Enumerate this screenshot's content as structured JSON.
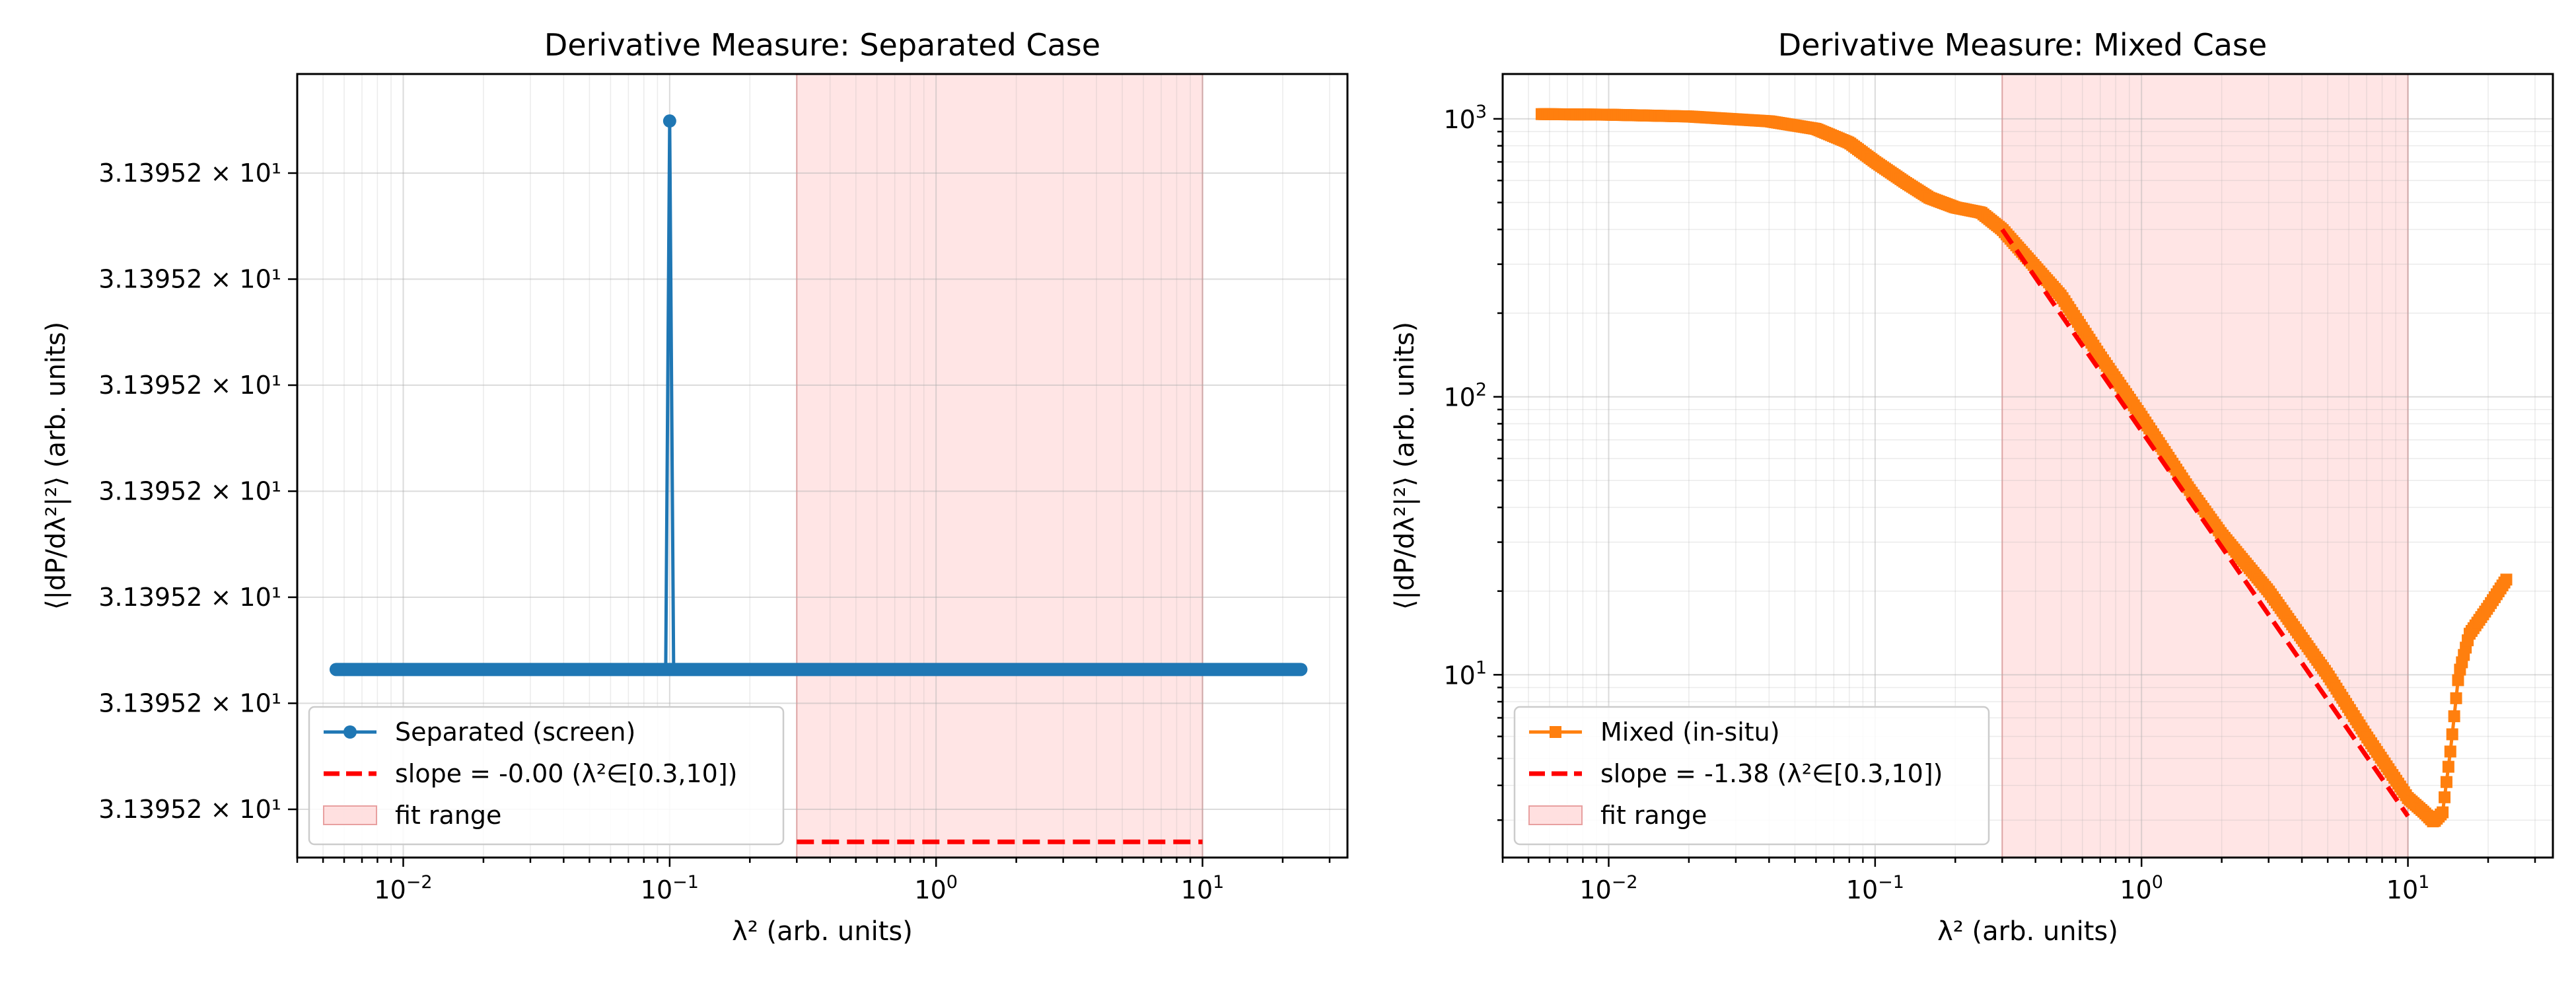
{
  "chart_data": [
    {
      "type": "line",
      "title": "Derivative Measure: Separated Case",
      "xlabel": "λ² (arb. units)",
      "ylabel": "⟨|dP/dλ²|²⟩ (arb. units)",
      "xscale": "log",
      "yscale": "linear",
      "xlim": [
        0.004,
        35
      ],
      "x_ticks": [
        {
          "value": 0.01,
          "base": "10",
          "exp": "−2"
        },
        {
          "value": 0.1,
          "base": "10",
          "exp": "−1"
        },
        {
          "value": 1,
          "base": "10",
          "exp": "0"
        },
        {
          "value": 10,
          "base": "10",
          "exp": "1"
        }
      ],
      "y_tick_labels": [
        "3.13952 × 10¹",
        "3.13952 × 10¹",
        "3.13952 × 10¹",
        "3.13952 × 10¹",
        "3.13952 × 10¹",
        "3.13952 × 10¹",
        "3.13952 × 10¹"
      ],
      "grid": true,
      "legend_position": "lower-left",
      "fit_range": [
        0.3,
        10
      ],
      "series": [
        {
          "name": "Separated (screen)",
          "color": "#1f77b4",
          "marker": "circle",
          "x_range": [
            0.0056,
            23.4
          ],
          "baseline_level": 0.24,
          "spike": {
            "x": 0.1,
            "level": 0.94
          }
        },
        {
          "name": "slope = -0.00 (λ²∈[0.3,10])",
          "color": "#ff0000",
          "style": "dashed",
          "x_range": [
            0.3,
            10
          ],
          "level": 0.02
        }
      ],
      "legend": [
        {
          "label": "Separated (screen)",
          "kind": "marker-line",
          "color": "#1f77b4"
        },
        {
          "label": "slope = -0.00 (λ²∈[0.3,10])",
          "kind": "dashed",
          "color": "#ff0000"
        },
        {
          "label": "fit range",
          "kind": "patch",
          "color": "#ffcccc"
        }
      ]
    },
    {
      "type": "line",
      "title": "Derivative Measure: Mixed Case",
      "xlabel": "λ² (arb. units)",
      "ylabel": "⟨|dP/dλ²|²⟩ (arb. units)",
      "xscale": "log",
      "yscale": "log",
      "xlim": [
        0.004,
        35
      ],
      "ylim": [
        2.2,
        1450
      ],
      "x_ticks": [
        {
          "value": 0.01,
          "base": "10",
          "exp": "−2"
        },
        {
          "value": 0.1,
          "base": "10",
          "exp": "−1"
        },
        {
          "value": 1,
          "base": "10",
          "exp": "0"
        },
        {
          "value": 10,
          "base": "10",
          "exp": "1"
        }
      ],
      "y_ticks": [
        {
          "value": 10,
          "base": "10",
          "exp": "1"
        },
        {
          "value": 100,
          "base": "10",
          "exp": "2"
        },
        {
          "value": 1000,
          "base": "10",
          "exp": "3"
        }
      ],
      "grid": true,
      "legend_position": "lower-left",
      "fit_range": [
        0.3,
        10
      ],
      "series": [
        {
          "name": "Mixed (in-situ)",
          "color": "#ff7f0e",
          "marker": "square",
          "x": [
            0.0056,
            0.01,
            0.02,
            0.04,
            0.06,
            0.08,
            0.1,
            0.13,
            0.16,
            0.2,
            0.25,
            0.3,
            0.5,
            0.7,
            1.0,
            1.5,
            2.0,
            3.0,
            5.0,
            7.0,
            10.0,
            11.5,
            12.5,
            13.5,
            14.5,
            15.5,
            17.0,
            20.0,
            23.4
          ],
          "y": [
            1040,
            1035,
            1020,
            980,
            920,
            820,
            700,
            590,
            520,
            480,
            460,
            400,
            230,
            140,
            85,
            47,
            32,
            20,
            10,
            6,
            3.6,
            3.2,
            2.95,
            3.2,
            5.5,
            10,
            14,
            17.5,
            22
          ]
        },
        {
          "name": "slope = -1.38 (λ²∈[0.3,10])",
          "color": "#ff0000",
          "style": "dashed",
          "x": [
            0.3,
            10
          ],
          "y": [
            400,
            3.1
          ]
        }
      ],
      "legend": [
        {
          "label": "Mixed (in-situ)",
          "kind": "marker-line",
          "color": "#ff7f0e"
        },
        {
          "label": "slope = -1.38 (λ²∈[0.3,10])",
          "kind": "dashed",
          "color": "#ff0000"
        },
        {
          "label": "fit range",
          "kind": "patch",
          "color": "#ffcccc"
        }
      ]
    }
  ]
}
